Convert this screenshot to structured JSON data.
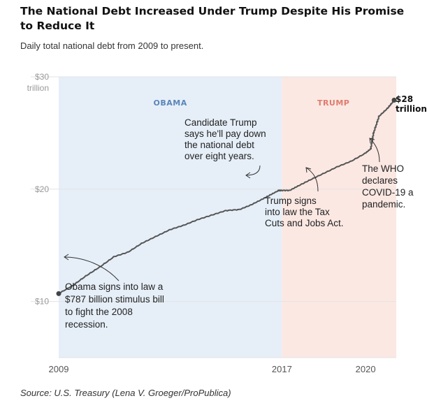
{
  "header": {
    "title": "The National Debt Increased Under Trump Despite His Promise to Reduce It",
    "subtitle": "Daily total national debt from 2009 to present."
  },
  "source": "Source: U.S. Treasury (Lena V. Groeger/ProPublica)",
  "colors": {
    "obama_band": "#e6eff8",
    "trump_band": "#fbe8e3",
    "line": "#555555"
  },
  "chart_data": {
    "type": "line",
    "title": "The National Debt Increased Under Trump Despite His Promise to Reduce It",
    "subtitle": "Daily total national debt from 2009 to present.",
    "xlabel": "",
    "ylabel": "",
    "ylim": [
      5,
      30
    ],
    "xlim": [
      2009,
      2021.1
    ],
    "y_ticks": [
      {
        "value": 10,
        "label": "$10"
      },
      {
        "value": 20,
        "label": "$20"
      },
      {
        "value": 30,
        "label": "$30",
        "sublabel": "trillion"
      }
    ],
    "x_ticks": [
      {
        "value": 2009,
        "label": "2009"
      },
      {
        "value": 2017,
        "label": "2017"
      },
      {
        "value": 2020,
        "label": "2020"
      }
    ],
    "grid": true,
    "bands": [
      {
        "name": "obama",
        "label": "OBAMA",
        "from": 2009,
        "to": 2017
      },
      {
        "name": "trump",
        "label": "TRUMP",
        "from": 2017,
        "to": 2021.1
      }
    ],
    "series": [
      {
        "name": "Total national debt",
        "x": [
          2009.0,
          2009.5,
          2010.0,
          2010.5,
          2011.0,
          2011.5,
          2012.0,
          2012.5,
          2013.0,
          2013.5,
          2014.0,
          2014.5,
          2015.0,
          2015.5,
          2015.9,
          2016.3,
          2016.6,
          2016.9,
          2017.0,
          2017.3,
          2017.6,
          2018.0,
          2018.5,
          2019.0,
          2019.5,
          2020.0,
          2020.2,
          2020.3,
          2020.5,
          2020.8,
          2021.0
        ],
        "values": [
          10.7,
          11.4,
          12.3,
          13.1,
          14.0,
          14.4,
          15.2,
          15.8,
          16.4,
          16.8,
          17.3,
          17.7,
          18.1,
          18.2,
          18.6,
          19.1,
          19.5,
          19.9,
          19.9,
          19.9,
          20.3,
          20.8,
          21.4,
          22.0,
          22.5,
          23.2,
          23.6,
          25.0,
          26.5,
          27.2,
          27.8
        ]
      }
    ],
    "end_label": {
      "value": "$28",
      "unit": "trillion"
    },
    "annotations": [
      {
        "id": "obama",
        "x": 2009.0,
        "y": 10.7,
        "lines": [
          "Obama signs into law a",
          "$787 billion stimulus bill",
          "to fight the 2008",
          "recession."
        ]
      },
      {
        "id": "candidate",
        "x": 2016.1,
        "y": 19.2,
        "lines": [
          "Candidate Trump",
          "says he'll pay down",
          "the national debt",
          "over eight years."
        ]
      },
      {
        "id": "tax",
        "x": 2018.0,
        "y": 20.6,
        "lines": [
          "Trump signs",
          "into law the Tax",
          "Cuts and Jobs Act."
        ]
      },
      {
        "id": "covid",
        "x": 2020.25,
        "y": 23.6,
        "lines": [
          "The WHO",
          "declares",
          "COVID-19 a",
          "pandemic."
        ]
      }
    ]
  }
}
